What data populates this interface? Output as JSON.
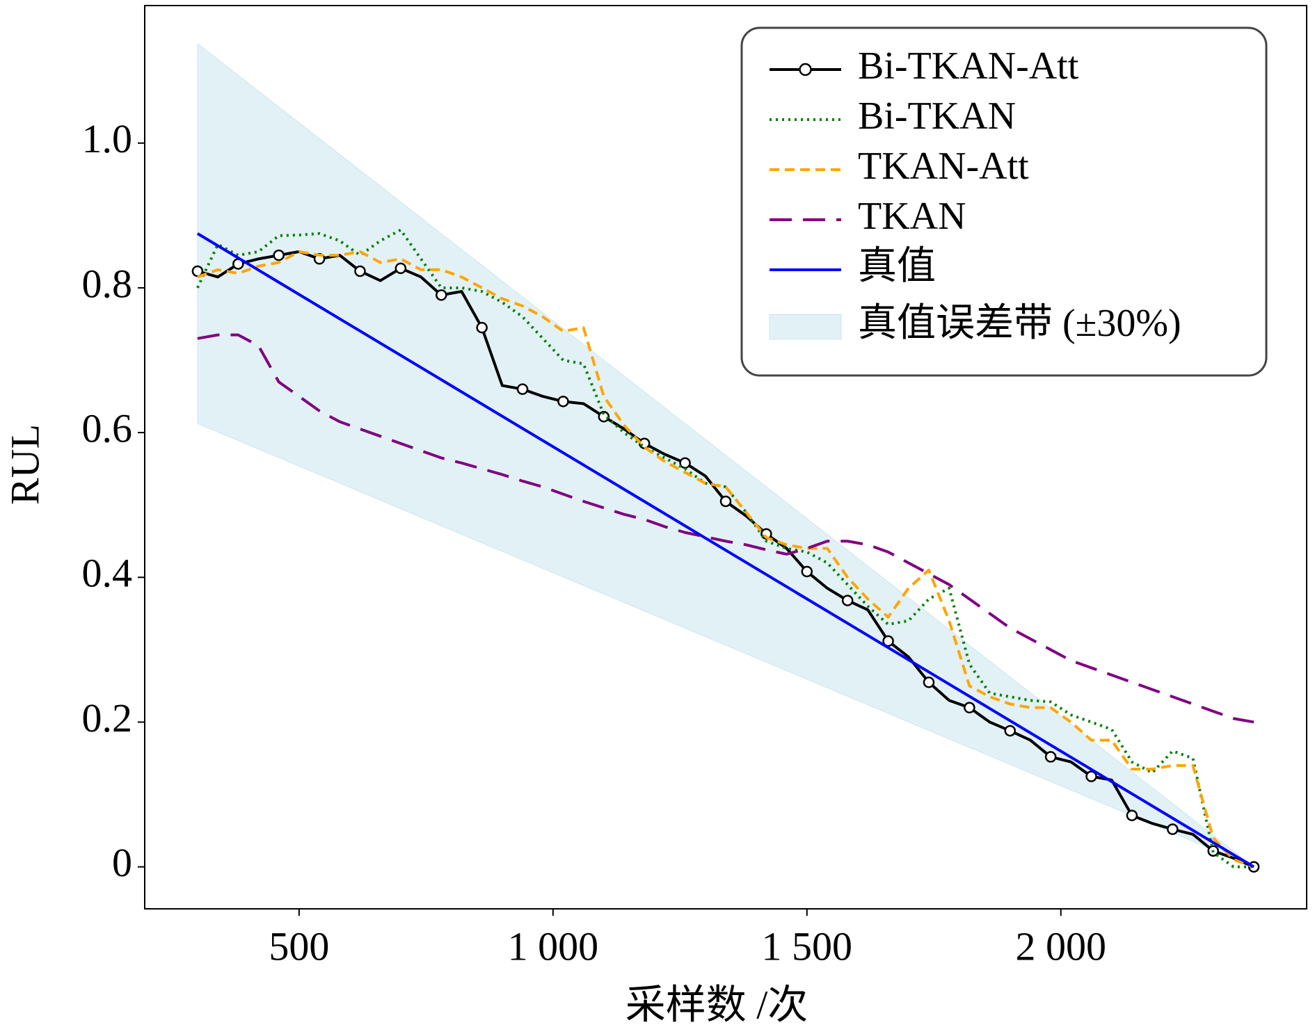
{
  "chart_data": {
    "type": "line",
    "xlabel": "采样数 /次",
    "ylabel": "RUL",
    "xlim": [
      196,
      2484
    ],
    "ylim": [
      -0.058,
      1.19
    ],
    "xticks": [
      500,
      {
        "value": 1000,
        "label": "1 000"
      },
      {
        "value": 1500,
        "label": "1 500"
      },
      {
        "value": 2000,
        "label": "2 000"
      }
    ],
    "yticks": [
      0,
      0.2,
      0.4,
      0.6,
      0.8,
      {
        "value": 1.0,
        "label": "1.0"
      }
    ],
    "legend": "upper right",
    "x": [
      300,
      340,
      380,
      420,
      460,
      500,
      540,
      580,
      620,
      660,
      700,
      740,
      780,
      820,
      860,
      900,
      940,
      980,
      1020,
      1060,
      1100,
      1140,
      1180,
      1220,
      1260,
      1300,
      1340,
      1380,
      1420,
      1460,
      1500,
      1540,
      1580,
      1620,
      1660,
      1700,
      1740,
      1780,
      1820,
      1860,
      1900,
      1940,
      1980,
      2020,
      2060,
      2100,
      2140,
      2180,
      2220,
      2260,
      2300,
      2340,
      2380
    ],
    "series": [
      {
        "name": "Bi-TKAN-Att",
        "color": "#000000",
        "linestyle": "solid",
        "marker": "o",
        "markevery": 2,
        "values": [
          0.823,
          0.815,
          0.833,
          0.84,
          0.845,
          0.85,
          0.84,
          0.845,
          0.823,
          0.81,
          0.827,
          0.815,
          0.79,
          0.795,
          0.745,
          0.665,
          0.66,
          0.65,
          0.643,
          0.64,
          0.622,
          0.605,
          0.585,
          0.57,
          0.558,
          0.54,
          0.505,
          0.485,
          0.46,
          0.44,
          0.408,
          0.385,
          0.368,
          0.355,
          0.312,
          0.29,
          0.255,
          0.23,
          0.22,
          0.2,
          0.188,
          0.175,
          0.152,
          0.145,
          0.125,
          0.12,
          0.071,
          0.06,
          0.052,
          0.045,
          0.022,
          0.012,
          0.0
        ]
      },
      {
        "name": "Bi-TKAN",
        "color": "#008000",
        "linestyle": "dotted",
        "values": [
          0.8,
          0.86,
          0.845,
          0.85,
          0.872,
          0.873,
          0.875,
          0.865,
          0.845,
          0.865,
          0.88,
          0.84,
          0.8,
          0.8,
          0.795,
          0.78,
          0.76,
          0.73,
          0.7,
          0.695,
          0.625,
          0.6,
          0.58,
          0.565,
          0.55,
          0.53,
          0.525,
          0.49,
          0.45,
          0.44,
          0.435,
          0.42,
          0.39,
          0.36,
          0.335,
          0.34,
          0.37,
          0.385,
          0.28,
          0.24,
          0.235,
          0.23,
          0.228,
          0.21,
          0.2,
          0.19,
          0.145,
          0.13,
          0.16,
          0.15,
          0.02,
          0.0,
          0.0
        ]
      },
      {
        "name": "TKAN-Att",
        "color": "#ffa500",
        "linestyle": "dashed",
        "values": [
          0.815,
          0.825,
          0.82,
          0.83,
          0.835,
          0.85,
          0.845,
          0.845,
          0.85,
          0.835,
          0.84,
          0.825,
          0.825,
          0.815,
          0.8,
          0.785,
          0.775,
          0.76,
          0.74,
          0.745,
          0.65,
          0.61,
          0.58,
          0.56,
          0.545,
          0.53,
          0.525,
          0.49,
          0.455,
          0.445,
          0.44,
          0.44,
          0.4,
          0.37,
          0.345,
          0.385,
          0.41,
          0.34,
          0.25,
          0.235,
          0.225,
          0.22,
          0.22,
          0.2,
          0.175,
          0.175,
          0.135,
          0.135,
          0.14,
          0.14,
          0.04,
          0.01,
          0.0
        ]
      },
      {
        "name": "TKAN",
        "color": "#800080",
        "linestyle": "longdash",
        "values": [
          0.73,
          0.735,
          0.735,
          0.72,
          0.67,
          0.65,
          0.63,
          0.615,
          0.605,
          0.595,
          0.585,
          0.575,
          0.565,
          0.558,
          0.55,
          0.542,
          0.533,
          0.525,
          0.515,
          0.505,
          0.496,
          0.487,
          0.48,
          0.47,
          0.462,
          0.456,
          0.45,
          0.445,
          0.438,
          0.432,
          0.44,
          0.45,
          0.45,
          0.445,
          0.435,
          0.42,
          0.405,
          0.39,
          0.37,
          0.35,
          0.33,
          0.315,
          0.3,
          0.285,
          0.275,
          0.265,
          0.255,
          0.245,
          0.235,
          0.225,
          0.215,
          0.205,
          0.2
        ]
      },
      {
        "name": "真值",
        "color": "#0000ff",
        "linestyle": "solid",
        "x": [
          300,
          2380
        ],
        "values": [
          0.875,
          0.0
        ]
      }
    ],
    "band": {
      "name": "真值误差带 (±30%)",
      "color": "#add8e6",
      "x": [
        300,
        2380
      ],
      "lower": [
        0.6125,
        0.0
      ],
      "upper": [
        1.1375,
        0.0
      ]
    }
  }
}
